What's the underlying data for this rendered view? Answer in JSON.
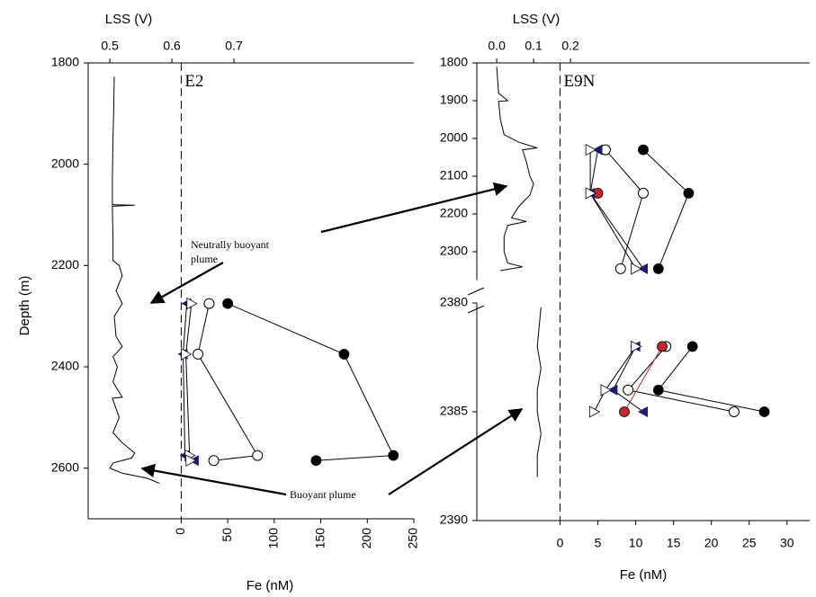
{
  "chart_data": [
    {
      "type": "profile",
      "label": "E2",
      "top_axis_label": "LSS (V)",
      "lss_xlim": [
        0.465,
        0.99
      ],
      "lss_xticks": [
        0.5,
        0.6,
        0.7
      ],
      "xlabel": "Fe (nM)",
      "xlim": [
        -100,
        250
      ],
      "xticks": [
        0,
        50,
        100,
        150,
        200,
        250
      ],
      "rotate_xticks": true,
      "ylabel": "Depth (m)",
      "segments": [
        {
          "ylim": [
            1800,
            2700
          ],
          "yticks": [
            1800,
            2000,
            2200,
            2400,
            2600
          ]
        }
      ],
      "lss_traces": [
        {
          "depth": [
            1827,
            1900,
            1950,
            2030,
            2080,
            2081,
            2083,
            2150,
            2190,
            2200,
            2220,
            2250,
            2275,
            2300,
            2340,
            2360,
            2380,
            2400,
            2430,
            2460,
            2462,
            2500,
            2530,
            2550,
            2570,
            2580,
            2590,
            2600,
            2610,
            2620,
            2630
          ],
          "values": [
            0.507,
            0.506,
            0.505,
            0.504,
            0.504,
            0.54,
            0.504,
            0.505,
            0.505,
            0.515,
            0.52,
            0.51,
            0.52,
            0.507,
            0.51,
            0.52,
            0.505,
            0.512,
            0.505,
            0.52,
            0.504,
            0.515,
            0.505,
            0.52,
            0.54,
            0.535,
            0.505,
            0.5,
            0.52,
            0.56,
            0.58
          ]
        }
      ],
      "series": [
        {
          "marker": "circle-filled",
          "color": "#000000",
          "depth": [
            2275,
            2375,
            2575,
            2585
          ],
          "values": [
            50,
            175,
            228,
            145
          ]
        },
        {
          "marker": "circle-open",
          "color": "#000000",
          "depth": [
            2275,
            2375,
            2575,
            2585
          ],
          "values": [
            30,
            18,
            82,
            35
          ]
        },
        {
          "marker": "triangle-left",
          "color": "#1c1c6e",
          "depth": [
            2275,
            2375,
            2575,
            2585
          ],
          "values": [
            6,
            2,
            4,
            14
          ]
        },
        {
          "marker": "triangle-right",
          "color": "#1c1c6e",
          "depth": [
            2275,
            2375,
            2575,
            2585
          ],
          "values": [
            11,
            5,
            9,
            10
          ]
        }
      ],
      "annotations": [
        "Neutrally buoyant plume",
        "Buoyant plume"
      ]
    },
    {
      "type": "profile",
      "label": "E9N",
      "top_axis_label": "LSS (V)",
      "lss_xlim": [
        -0.054,
        0.849
      ],
      "lss_xticks": [
        {
          "value": 0,
          "label": "0.0"
        },
        0.1,
        0.2
      ],
      "xlabel": "Fe (nM)",
      "xlim": [
        -11,
        33
      ],
      "xticks": [
        0,
        5,
        10,
        15,
        20,
        25,
        30
      ],
      "segments": [
        {
          "ylim": [
            1800,
            2375
          ],
          "yticks": [
            1800,
            1900,
            2000,
            2100,
            2200,
            2300
          ]
        },
        {
          "ylim": [
            2380,
            2390
          ],
          "yticks": [
            2380,
            2385,
            2390
          ]
        }
      ],
      "lss_traces": [
        {
          "depth": [
            1810,
            1880,
            1900,
            1902,
            1950,
            1990,
            2010,
            2025,
            2030,
            2060,
            2100,
            2120,
            2150,
            2180,
            2210,
            2220,
            2230,
            2260,
            2300,
            2330,
            2340,
            2350
          ],
          "values": [
            0.0,
            0.005,
            0.03,
            0.005,
            0.01,
            0.02,
            0.06,
            0.11,
            0.07,
            0.08,
            0.09,
            0.1,
            0.09,
            0.06,
            0.04,
            0.08,
            0.03,
            0.02,
            0.02,
            0.03,
            0.07,
            0.01
          ]
        },
        {
          "depth": [
            2380.2,
            2382,
            2383,
            2384,
            2385,
            2386,
            2387,
            2388
          ],
          "values": [
            0.12,
            0.11,
            0.12,
            0.11,
            0.11,
            0.12,
            0.11,
            0.11
          ]
        }
      ],
      "series": [
        {
          "marker": "circle-filled",
          "color": "#000000",
          "depth": [
            2030,
            2145,
            2345,
            2382,
            2384,
            2385
          ],
          "values": [
            11,
            17,
            13,
            17.5,
            13,
            27
          ]
        },
        {
          "marker": "circle-open",
          "color": "#000000",
          "depth": [
            2030,
            2145,
            2345,
            2382,
            2384,
            2385
          ],
          "values": [
            6,
            11,
            8,
            14,
            9,
            23
          ]
        },
        {
          "marker": "circle-filled",
          "color": "#c0282d",
          "depth": [
            2145,
            2382,
            2385
          ],
          "values": [
            5,
            13.5,
            8.5
          ]
        },
        {
          "marker": "triangle-left",
          "color": "#1c1c6e",
          "depth": [
            2030,
            2145,
            2345,
            2382,
            2384,
            2385
          ],
          "values": [
            5,
            4,
            11,
            10,
            7,
            11
          ]
        },
        {
          "marker": "triangle-right",
          "color": "#1c1c6e",
          "depth": [
            2030,
            2145,
            2345,
            2382,
            2384,
            2385
          ],
          "values": [
            4,
            4,
            10,
            10,
            6,
            4.5
          ]
        }
      ]
    }
  ]
}
